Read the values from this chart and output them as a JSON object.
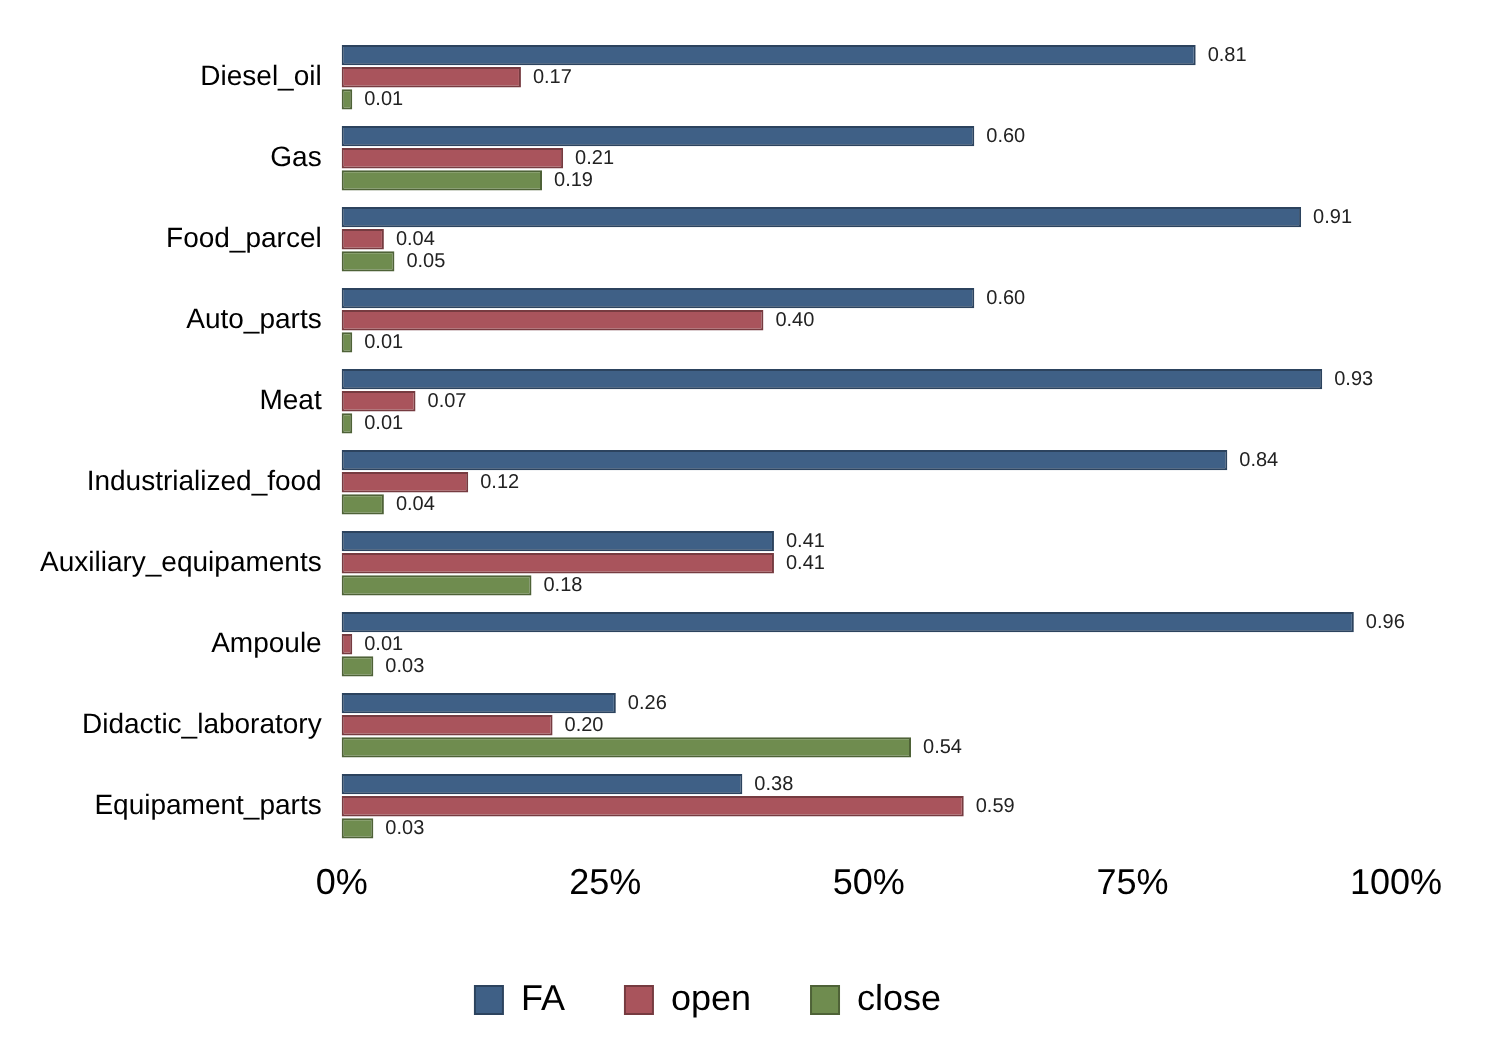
{
  "chart_data": {
    "type": "bar",
    "orientation": "horizontal",
    "categories": [
      "Diesel_oil",
      "Gas",
      "Food_parcel",
      "Auto_parts",
      "Meat",
      "Industrialized_food",
      "Auxiliary_equipaments",
      "Ampoule",
      "Didactic_laboratory",
      "Equipament_parts"
    ],
    "series": [
      {
        "name": "FA",
        "color": "#3f6086",
        "values": [
          0.81,
          0.6,
          0.91,
          0.6,
          0.93,
          0.84,
          0.41,
          0.96,
          0.26,
          0.38
        ],
        "value_labels": [
          "0.81",
          "0.60",
          "0.91",
          "0.60",
          "0.93",
          "0.84",
          "0.41",
          "0.96",
          "0.26",
          "0.38"
        ]
      },
      {
        "name": "open",
        "color": "#a9545c",
        "values": [
          0.17,
          0.21,
          0.04,
          0.4,
          0.07,
          0.12,
          0.41,
          0.01,
          0.2,
          0.59
        ],
        "value_labels": [
          "0.17",
          "0.21",
          "0.04",
          "0.40",
          "0.07",
          "0.12",
          "0.41",
          "0.01",
          "0.20",
          "0.59"
        ]
      },
      {
        "name": "close",
        "color": "#6f8c4f",
        "values": [
          0.01,
          0.19,
          0.05,
          0.01,
          0.01,
          0.04,
          0.18,
          0.03,
          0.54,
          0.03
        ],
        "value_labels": [
          "0.01",
          "0.19",
          "0.05",
          "0.01",
          "0.01",
          "0.04",
          "0.18",
          "0.03",
          "0.54",
          "0.03"
        ]
      }
    ],
    "xlim": [
      0,
      1
    ],
    "xticks": [
      {
        "value": 0,
        "label": "0%"
      },
      {
        "value": 0.25,
        "label": "25%"
      },
      {
        "value": 0.5,
        "label": "50%"
      },
      {
        "value": 0.75,
        "label": "75%"
      },
      {
        "value": 1,
        "label": "100%"
      }
    ],
    "grid": false,
    "legend": "bottom"
  }
}
